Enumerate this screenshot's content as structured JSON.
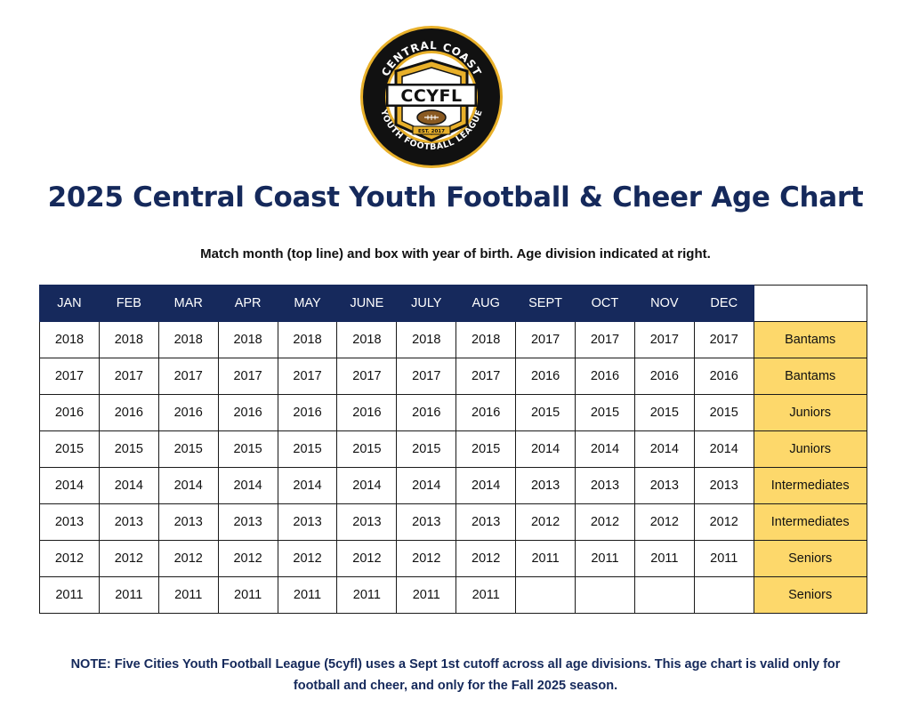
{
  "logo": {
    "arc_top": "CENTRAL COAST",
    "arc_bottom": "YOUTH FOOTBALL LEAGUE",
    "initials": "CCYFL",
    "est": "EST. 2017"
  },
  "title": "2025 Central Coast Youth Football & Cheer Age Chart",
  "instructions": "Match month (top line) and box with year of birth. Age division indicated at right.",
  "table": {
    "months": [
      "JAN",
      "FEB",
      "MAR",
      "APR",
      "MAY",
      "JUNE",
      "JULY",
      "AUG",
      "SEPT",
      "OCT",
      "NOV",
      "DEC"
    ],
    "rows": [
      {
        "years": [
          "2018",
          "2018",
          "2018",
          "2018",
          "2018",
          "2018",
          "2018",
          "2018",
          "2017",
          "2017",
          "2017",
          "2017"
        ],
        "division": "Bantams"
      },
      {
        "years": [
          "2017",
          "2017",
          "2017",
          "2017",
          "2017",
          "2017",
          "2017",
          "2017",
          "2016",
          "2016",
          "2016",
          "2016"
        ],
        "division": "Bantams"
      },
      {
        "years": [
          "2016",
          "2016",
          "2016",
          "2016",
          "2016",
          "2016",
          "2016",
          "2016",
          "2015",
          "2015",
          "2015",
          "2015"
        ],
        "division": "Juniors"
      },
      {
        "years": [
          "2015",
          "2015",
          "2015",
          "2015",
          "2015",
          "2015",
          "2015",
          "2015",
          "2014",
          "2014",
          "2014",
          "2014"
        ],
        "division": "Juniors"
      },
      {
        "years": [
          "2014",
          "2014",
          "2014",
          "2014",
          "2014",
          "2014",
          "2014",
          "2014",
          "2013",
          "2013",
          "2013",
          "2013"
        ],
        "division": "Intermediates"
      },
      {
        "years": [
          "2013",
          "2013",
          "2013",
          "2013",
          "2013",
          "2013",
          "2013",
          "2013",
          "2012",
          "2012",
          "2012",
          "2012"
        ],
        "division": "Intermediates"
      },
      {
        "years": [
          "2012",
          "2012",
          "2012",
          "2012",
          "2012",
          "2012",
          "2012",
          "2012",
          "2011",
          "2011",
          "2011",
          "2011"
        ],
        "division": "Seniors"
      },
      {
        "years": [
          "2011",
          "2011",
          "2011",
          "2011",
          "2011",
          "2011",
          "2011",
          "2011",
          "",
          "",
          "",
          ""
        ],
        "division": "Seniors"
      }
    ]
  },
  "note": "NOTE: Five Cities Youth Football League (5cyfl) uses a Sept 1st cutoff across all age divisions. This age chart is valid only for football and cheer, and only for the Fall 2025 season.",
  "colors": {
    "navy": "#16295c",
    "gold": "#fdd86b",
    "logo_gold": "#e8b02a"
  }
}
